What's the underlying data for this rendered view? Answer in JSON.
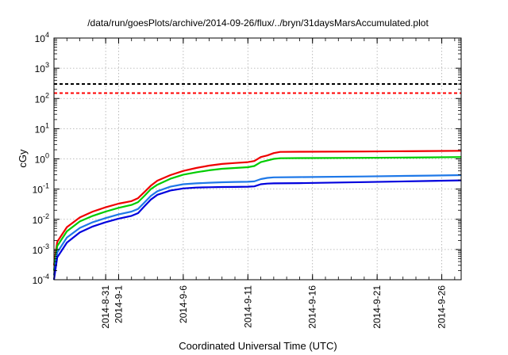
{
  "chart_data": {
    "type": "line",
    "title": "/data/run/goesPlots/archive/2014-09-26/flux/../bryn/31daysMarsAccumulated.plot",
    "xlabel": "Coordinated Universal Time (UTC)",
    "ylabel": "cGy",
    "yscale": "log",
    "grid": true,
    "xlim": [
      "2014-08-27T00:00",
      "2014-09-27T12:00"
    ],
    "ylim": [
      0.0001,
      10000
    ],
    "ytick_labels": [
      {
        "base": "10",
        "exp": "-4"
      },
      {
        "base": "10",
        "exp": "-3"
      },
      {
        "base": "10",
        "exp": "-2"
      },
      {
        "base": "10",
        "exp": "-1"
      },
      {
        "base": "10",
        "exp": "0"
      },
      {
        "base": "10",
        "exp": "1"
      },
      {
        "base": "10",
        "exp": "2"
      },
      {
        "base": "10",
        "exp": "3"
      },
      {
        "base": "10",
        "exp": "4"
      }
    ],
    "xtick_labels": [
      "2014-8-31",
      "2014-9-1",
      "2014-9-6",
      "2014-9-11",
      "2014-9-16",
      "2014-9-21",
      "2014-9-26"
    ],
    "reference_lines": [
      {
        "y": 300,
        "color": "#000000",
        "style": "dashed"
      },
      {
        "y": 150,
        "color": "#ff0000",
        "style": "dashed"
      }
    ],
    "series": [
      {
        "color": "#ee0000",
        "points": [
          [
            "2014-08-27T00:00",
            0.0003
          ],
          [
            "2014-08-27T06:00",
            0.0018
          ],
          [
            "2014-08-28T00:00",
            0.0055
          ],
          [
            "2014-08-29T00:00",
            0.0115
          ],
          [
            "2014-08-30T00:00",
            0.018
          ],
          [
            "2014-08-31T00:00",
            0.025
          ],
          [
            "2014-09-01T00:00",
            0.033
          ],
          [
            "2014-09-02T00:00",
            0.04
          ],
          [
            "2014-09-02T12:00",
            0.05
          ],
          [
            "2014-09-03T00:00",
            0.08
          ],
          [
            "2014-09-03T12:00",
            0.13
          ],
          [
            "2014-09-04T00:00",
            0.19
          ],
          [
            "2014-09-05T00:00",
            0.29
          ],
          [
            "2014-09-06T00:00",
            0.4
          ],
          [
            "2014-09-07T00:00",
            0.5
          ],
          [
            "2014-09-08T00:00",
            0.6
          ],
          [
            "2014-09-09T00:00",
            0.68
          ],
          [
            "2014-09-10T00:00",
            0.73
          ],
          [
            "2014-09-11T00:00",
            0.78
          ],
          [
            "2014-09-11T12:00",
            0.85
          ],
          [
            "2014-09-12T00:00",
            1.15
          ],
          [
            "2014-09-12T12:00",
            1.3
          ],
          [
            "2014-09-13T00:00",
            1.55
          ],
          [
            "2014-09-13T12:00",
            1.7
          ],
          [
            "2014-09-15T00:00",
            1.72
          ],
          [
            "2014-09-20T00:00",
            1.75
          ],
          [
            "2014-09-25T00:00",
            1.82
          ],
          [
            "2014-09-27T12:00",
            1.85
          ]
        ]
      },
      {
        "color": "#00cc00",
        "points": [
          [
            "2014-08-27T00:00",
            0.0002
          ],
          [
            "2014-08-27T06:00",
            0.0013
          ],
          [
            "2014-08-28T00:00",
            0.004
          ],
          [
            "2014-08-29T00:00",
            0.0085
          ],
          [
            "2014-08-30T00:00",
            0.013
          ],
          [
            "2014-08-31T00:00",
            0.018
          ],
          [
            "2014-09-01T00:00",
            0.024
          ],
          [
            "2014-09-02T00:00",
            0.03
          ],
          [
            "2014-09-02T12:00",
            0.037
          ],
          [
            "2014-09-03T00:00",
            0.06
          ],
          [
            "2014-09-03T12:00",
            0.1
          ],
          [
            "2014-09-04T00:00",
            0.14
          ],
          [
            "2014-09-05T00:00",
            0.22
          ],
          [
            "2014-09-06T00:00",
            0.3
          ],
          [
            "2014-09-07T00:00",
            0.36
          ],
          [
            "2014-09-08T00:00",
            0.42
          ],
          [
            "2014-09-09T00:00",
            0.47
          ],
          [
            "2014-09-10T00:00",
            0.5
          ],
          [
            "2014-09-11T00:00",
            0.53
          ],
          [
            "2014-09-11T12:00",
            0.58
          ],
          [
            "2014-09-12T00:00",
            0.78
          ],
          [
            "2014-09-12T12:00",
            0.88
          ],
          [
            "2014-09-13T00:00",
            1.0
          ],
          [
            "2014-09-13T12:00",
            1.05
          ],
          [
            "2014-09-15T00:00",
            1.06
          ],
          [
            "2014-09-20T00:00",
            1.08
          ],
          [
            "2014-09-25T00:00",
            1.12
          ],
          [
            "2014-09-27T12:00",
            1.15
          ]
        ]
      },
      {
        "color": "#1e78e8",
        "points": [
          [
            "2014-08-27T00:00",
            0.00014
          ],
          [
            "2014-08-27T06:00",
            0.0008
          ],
          [
            "2014-08-28T00:00",
            0.0025
          ],
          [
            "2014-08-29T00:00",
            0.0052
          ],
          [
            "2014-08-30T00:00",
            0.008
          ],
          [
            "2014-08-31T00:00",
            0.011
          ],
          [
            "2014-09-01T00:00",
            0.0145
          ],
          [
            "2014-09-02T00:00",
            0.018
          ],
          [
            "2014-09-02T12:00",
            0.022
          ],
          [
            "2014-09-03T00:00",
            0.036
          ],
          [
            "2014-09-03T12:00",
            0.06
          ],
          [
            "2014-09-04T00:00",
            0.085
          ],
          [
            "2014-09-05T00:00",
            0.12
          ],
          [
            "2014-09-06T00:00",
            0.145
          ],
          [
            "2014-09-07T00:00",
            0.155
          ],
          [
            "2014-09-08T00:00",
            0.162
          ],
          [
            "2014-09-09T00:00",
            0.168
          ],
          [
            "2014-09-10T00:00",
            0.172
          ],
          [
            "2014-09-11T00:00",
            0.175
          ],
          [
            "2014-09-11T12:00",
            0.18
          ],
          [
            "2014-09-12T00:00",
            0.215
          ],
          [
            "2014-09-12T12:00",
            0.235
          ],
          [
            "2014-09-13T00:00",
            0.245
          ],
          [
            "2014-09-15T00:00",
            0.25
          ],
          [
            "2014-09-20T00:00",
            0.262
          ],
          [
            "2014-09-25T00:00",
            0.28
          ],
          [
            "2014-09-27T12:00",
            0.29
          ]
        ]
      },
      {
        "color": "#0000dd",
        "points": [
          [
            "2014-08-27T00:00",
            0.0001
          ],
          [
            "2014-08-27T06:00",
            0.00055
          ],
          [
            "2014-08-28T00:00",
            0.0017
          ],
          [
            "2014-08-29T00:00",
            0.0037
          ],
          [
            "2014-08-30T00:00",
            0.0058
          ],
          [
            "2014-08-31T00:00",
            0.008
          ],
          [
            "2014-09-01T00:00",
            0.0105
          ],
          [
            "2014-09-02T00:00",
            0.013
          ],
          [
            "2014-09-02T12:00",
            0.016
          ],
          [
            "2014-09-03T00:00",
            0.027
          ],
          [
            "2014-09-03T12:00",
            0.045
          ],
          [
            "2014-09-04T00:00",
            0.065
          ],
          [
            "2014-09-05T00:00",
            0.09
          ],
          [
            "2014-09-06T00:00",
            0.105
          ],
          [
            "2014-09-07T00:00",
            0.112
          ],
          [
            "2014-09-08T00:00",
            0.115
          ],
          [
            "2014-09-09T00:00",
            0.117
          ],
          [
            "2014-09-10T00:00",
            0.118
          ],
          [
            "2014-09-11T00:00",
            0.12
          ],
          [
            "2014-09-11T12:00",
            0.123
          ],
          [
            "2014-09-12T00:00",
            0.145
          ],
          [
            "2014-09-12T12:00",
            0.152
          ],
          [
            "2014-09-13T00:00",
            0.155
          ],
          [
            "2014-09-15T00:00",
            0.158
          ],
          [
            "2014-09-20T00:00",
            0.17
          ],
          [
            "2014-09-25T00:00",
            0.185
          ],
          [
            "2014-09-27T12:00",
            0.195
          ]
        ]
      }
    ]
  }
}
